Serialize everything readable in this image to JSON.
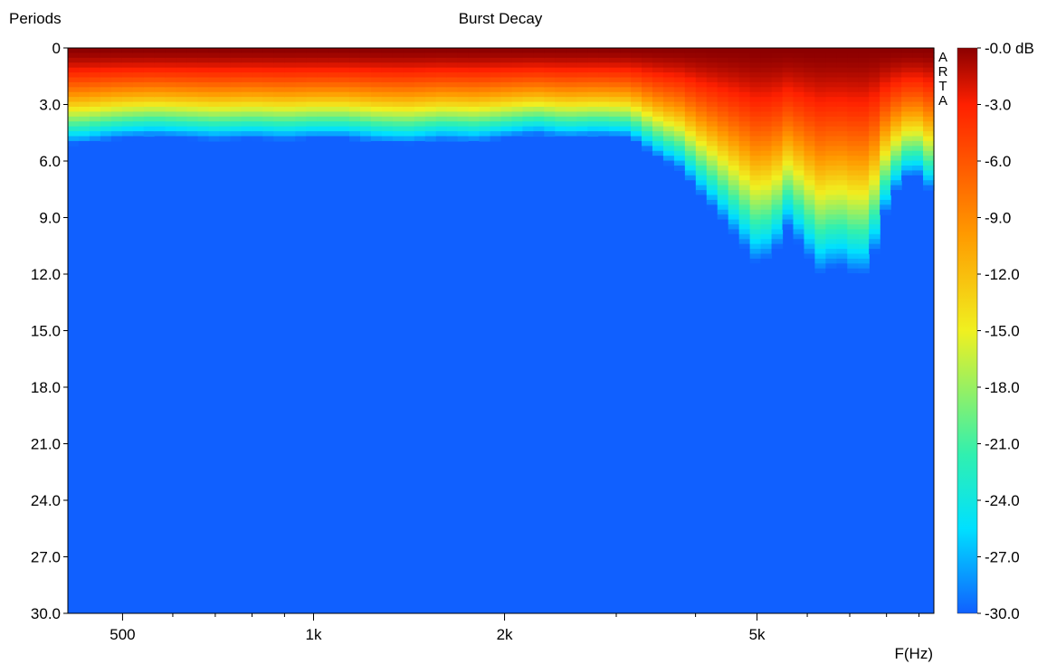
{
  "chart_data": {
    "type": "heatmap",
    "title": "Burst Decay",
    "ylabel": "Periods",
    "xlabel": "F(Hz)",
    "x_scale": "log",
    "xlim": [
      410,
      9500
    ],
    "ylim": [
      0,
      30
    ],
    "y_ticks": [
      "0",
      "3.0",
      "6.0",
      "9.0",
      "12.0",
      "15.0",
      "18.0",
      "21.0",
      "24.0",
      "27.0",
      "30.0"
    ],
    "y_tick_values": [
      0,
      3,
      6,
      9,
      12,
      15,
      18,
      21,
      24,
      27,
      30
    ],
    "x_ticks": [
      "500",
      "1k",
      "2k",
      "5k"
    ],
    "x_tick_values": [
      500,
      1000,
      2000,
      5000
    ],
    "watermark": "ARTA",
    "colorbar": {
      "unit": "dB",
      "ticks": [
        "-0.0 dB",
        "-3.0",
        "-6.0",
        "-9.0",
        "-12.0",
        "-15.0",
        "-18.0",
        "-21.0",
        "-24.0",
        "-27.0",
        "-30.0"
      ],
      "range": [
        -30,
        0
      ],
      "colors": [
        "#00008B",
        "#1060FF",
        "#00E0FF",
        "#F0F020",
        "#FF9A00",
        "#FF2000",
        "#8B0000"
      ]
    },
    "decay_profile": {
      "frequencies": [
        430,
        470,
        500,
        560,
        630,
        700,
        800,
        900,
        1000,
        1120,
        1250,
        1400,
        1600,
        1800,
        2000,
        2240,
        2500,
        2800,
        3150,
        3550,
        3800,
        4000,
        4250,
        4500,
        4750,
        5000,
        5300,
        5600,
        6000,
        6300,
        6700,
        7100,
        7500,
        7900,
        8300,
        8800,
        9300
      ],
      "periods_to_floor": [
        5.1,
        4.9,
        4.8,
        4.7,
        4.8,
        4.9,
        4.8,
        4.9,
        4.8,
        4.8,
        5.0,
        5.1,
        4.9,
        5.0,
        4.8,
        4.6,
        4.8,
        4.7,
        4.8,
        6.0,
        6.5,
        7.5,
        8.5,
        9.5,
        10.5,
        11.5,
        11.0,
        9.5,
        11.0,
        12.0,
        11.5,
        12.0,
        12.0,
        9.0,
        7.5,
        6.5,
        7.5
      ]
    }
  }
}
